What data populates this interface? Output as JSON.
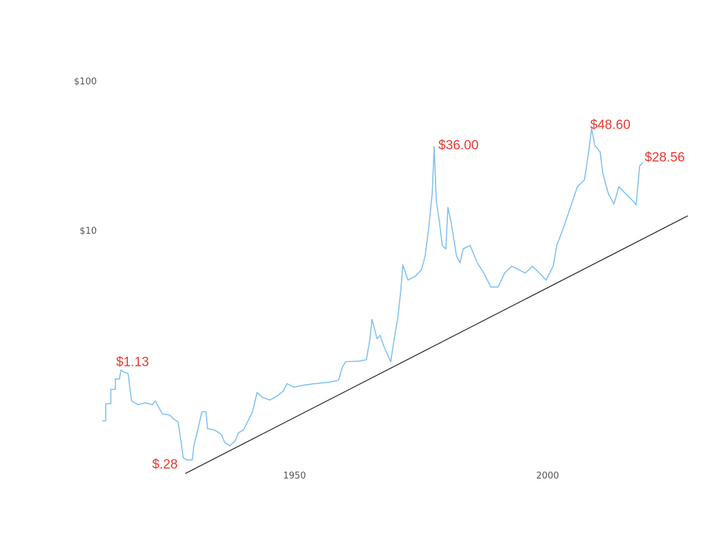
{
  "chart_data": {
    "type": "line",
    "title": "",
    "xlabel": "",
    "ylabel": "",
    "yscale": "log",
    "ylim": [
      0.2,
      200
    ],
    "xlim": [
      1905,
      2030
    ],
    "grid": false,
    "y_ticks": [
      {
        "value": 100,
        "label": "$100"
      },
      {
        "value": 10,
        "label": "$10"
      }
    ],
    "x_ticks": [
      {
        "value": 1950,
        "label": "1950"
      },
      {
        "value": 2000,
        "label": "2000"
      }
    ],
    "colors": {
      "series": "#7fc1f0",
      "trend": "#222222",
      "annotation": "#e8392f",
      "tick": "#555555"
    },
    "series": [
      {
        "name": "price",
        "x": [
          1912.0,
          1912.7,
          1912.7,
          1913.7,
          1913.7,
          1914.6,
          1914.6,
          1915.4,
          1915.7,
          1916.4,
          1917.1,
          1917.8,
          1919.1,
          1920.5,
          1921.9,
          1922.5,
          1923.2,
          1923.9,
          1925.3,
          1926.0,
          1927.0,
          1927.6,
          1928.0,
          1928.7,
          1929.8,
          1930.1,
          1931.0,
          1931.7,
          1932.5,
          1932.8,
          1934.2,
          1935.5,
          1936.2,
          1937.2,
          1938.3,
          1938.9,
          1939.9,
          1940.7,
          1941.7,
          1942.6,
          1943.7,
          1945.1,
          1946.4,
          1947.8,
          1948.5,
          1949.9,
          1951.9,
          1954.0,
          1956.7,
          1958.7,
          1959.4,
          1960.1,
          1962.8,
          1964.2,
          1964.9,
          1965.3,
          1966.3,
          1966.9,
          1967.6,
          1969.0,
          1969.7,
          1970.4,
          1971.0,
          1971.4,
          1972.4,
          1973.8,
          1975.1,
          1975.8,
          1976.5,
          1977.2,
          1977.6,
          1978.0,
          1978.6,
          1979.2,
          1979.9,
          1980.3,
          1980.9,
          1982.0,
          1982.7,
          1983.3,
          1984.7,
          1986.1,
          1987.4,
          1988.8,
          1990.2,
          1991.5,
          1992.9,
          1994.3,
          1995.6,
          1997.0,
          1998.4,
          1999.7,
          2001.1,
          2001.8,
          2003.1,
          2004.5,
          2005.9,
          2007.3,
          2008.2,
          2008.7,
          2009.3,
          2010.4,
          2010.9,
          2012.0,
          2013.1,
          2014.1,
          2015.4,
          2016.8,
          2017.5,
          2018.2,
          2018.9
        ],
        "y": [
          0.53,
          0.53,
          0.69,
          0.69,
          0.86,
          0.86,
          1.01,
          1.01,
          1.16,
          1.12,
          1.1,
          0.72,
          0.68,
          0.7,
          0.68,
          0.72,
          0.65,
          0.59,
          0.58,
          0.55,
          0.52,
          0.38,
          0.3,
          0.29,
          0.29,
          0.36,
          0.48,
          0.61,
          0.61,
          0.47,
          0.46,
          0.43,
          0.38,
          0.36,
          0.39,
          0.44,
          0.46,
          0.52,
          0.61,
          0.82,
          0.76,
          0.73,
          0.77,
          0.84,
          0.94,
          0.89,
          0.92,
          0.94,
          0.96,
          0.99,
          1.2,
          1.32,
          1.33,
          1.36,
          1.88,
          2.53,
          1.88,
          1.98,
          1.69,
          1.32,
          1.88,
          2.58,
          3.96,
          5.87,
          4.64,
          4.9,
          5.45,
          6.74,
          10.3,
          17.6,
          36.3,
          15.8,
          11.5,
          7.91,
          7.5,
          14.2,
          11.5,
          6.74,
          6.06,
          7.5,
          7.91,
          6.06,
          5.16,
          4.17,
          4.17,
          5.16,
          5.75,
          5.45,
          5.16,
          5.75,
          5.16,
          4.64,
          5.75,
          7.91,
          10.3,
          14.2,
          19.6,
          21.8,
          35.2,
          48.4,
          37.1,
          33.4,
          24.2,
          17.6,
          15.0,
          19.6,
          17.6,
          15.8,
          14.8,
          27.0,
          28.4
        ]
      },
      {
        "name": "trend",
        "x": [
          1928.4,
          2027.7
        ],
        "y": [
          0.235,
          12.5
        ]
      }
    ],
    "annotations": [
      {
        "label": "$1.13",
        "x": 1915.7,
        "y": 1.13
      },
      {
        "label": "$.28",
        "x": 1928.0,
        "y": 0.28
      },
      {
        "label": "$36.00",
        "x": 1977.6,
        "y": 36.0
      },
      {
        "label": "$48.60",
        "x": 2008.7,
        "y": 48.6
      },
      {
        "label": "$28.56",
        "x": 2018.9,
        "y": 28.56
      }
    ]
  }
}
